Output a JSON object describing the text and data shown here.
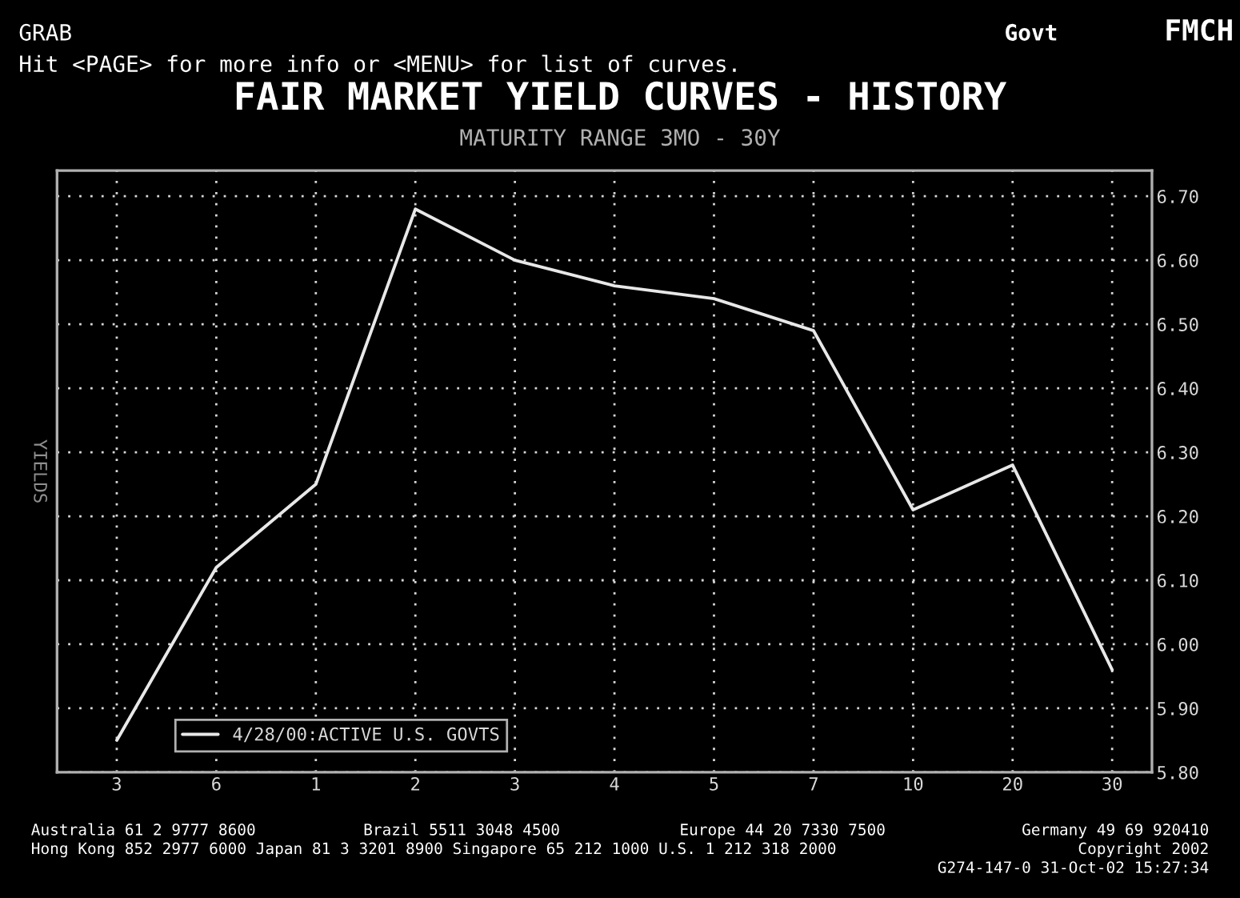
{
  "chart_data": {
    "type": "line",
    "title": "FAIR MARKET YIELD CURVES - HISTORY",
    "subtitle": "MATURITY RANGE 3MO - 30Y",
    "ylabel": "YIELDS",
    "categories": [
      "3",
      "6",
      "1",
      "2",
      "3",
      "4",
      "5",
      "7",
      "10",
      "20",
      "30"
    ],
    "series": [
      {
        "name": "4/28/00:ACTIVE U.S. GOVTS",
        "color": "#e8e8e8",
        "values": [
          5.85,
          6.12,
          6.25,
          6.68,
          6.6,
          6.56,
          6.54,
          6.49,
          6.21,
          6.28,
          5.96
        ]
      }
    ],
    "ylim": [
      5.8,
      6.74
    ],
    "yticks": [
      {
        "value": 5.8,
        "label": "5.80"
      },
      {
        "value": 5.9,
        "label": "5.90"
      },
      {
        "value": 6.0,
        "label": "6.00"
      },
      {
        "value": 6.1,
        "label": "6.10"
      },
      {
        "value": 6.2,
        "label": "6.20"
      },
      {
        "value": 6.3,
        "label": "6.30"
      },
      {
        "value": 6.4,
        "label": "6.40"
      },
      {
        "value": 6.5,
        "label": "6.50"
      },
      {
        "value": 6.6,
        "label": "6.60"
      },
      {
        "value": 6.7,
        "label": "6.70"
      }
    ],
    "grid": true,
    "legend": "bottom left",
    "marker": "none",
    "line_style": "solid",
    "annotations": [
      "GRAB",
      "Govt",
      "FMCH",
      "Hit <PAGE> for more info or <MENU> for list of curves.",
      "Australia 61 2 9777 8600",
      "Brazil 5511 3048 4500",
      "Europe 44 20 7330 7500",
      "Germany 49 69 920410",
      "Hong Kong 852 2977 6000 Japan 81 3 3201 8900 Singapore 65 212 1000 U.S. 1 212 318 2000",
      "Copyright 2002",
      "G274-147-0 31-Oct-02 15:27:34"
    ]
  }
}
